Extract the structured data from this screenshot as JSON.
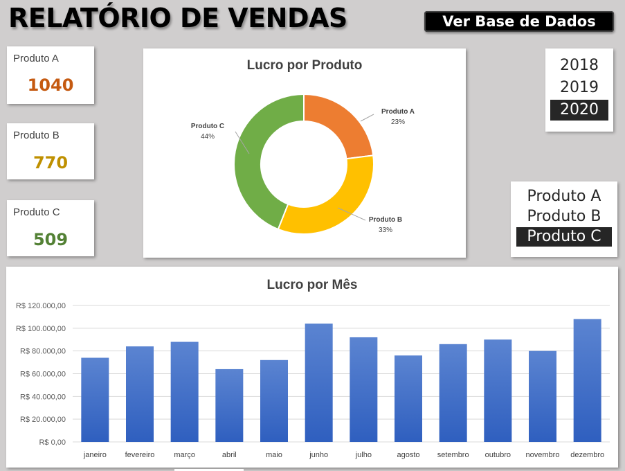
{
  "header": {
    "title": "RELATÓRIO DE VENDAS",
    "db_button": "Ver Base de Dados"
  },
  "kpis": [
    {
      "label": "Produto A",
      "value": "1040",
      "color": "#c55a11"
    },
    {
      "label": "Produto B",
      "value": "770",
      "color": "#bf9000"
    },
    {
      "label": "Produto C",
      "value": "509",
      "color": "#538135"
    }
  ],
  "year_slicer": {
    "items": [
      "2018",
      "2019",
      "2020"
    ],
    "selected": "2020"
  },
  "product_slicer": {
    "items": [
      "Produto A",
      "Produto B",
      "Produto C"
    ],
    "selected": "Produto C"
  },
  "chart_data": [
    {
      "type": "pie",
      "title": "Lucro por Produto",
      "donut": true,
      "categories": [
        "Produto A",
        "Produto B",
        "Produto C"
      ],
      "values": [
        23,
        33,
        44
      ],
      "value_labels": [
        "23%",
        "33%",
        "44%"
      ],
      "colors": [
        "#ed7d31",
        "#ffc000",
        "#70ad47"
      ]
    },
    {
      "type": "bar",
      "title": "Lucro por Mês",
      "categories": [
        "janeiro",
        "fevereiro",
        "março",
        "abril",
        "maio",
        "junho",
        "julho",
        "agosto",
        "setembro",
        "outubro",
        "novembro",
        "dezembro"
      ],
      "values": [
        74000,
        84000,
        88000,
        64000,
        72000,
        104000,
        92000,
        76000,
        86000,
        90000,
        80000,
        108000
      ],
      "ylim": [
        0,
        120000
      ],
      "yticks": [
        0,
        20000,
        40000,
        60000,
        80000,
        100000,
        120000
      ],
      "ytick_labels": [
        "R$ 0,00",
        "R$ 20.000,00",
        "R$ 40.000,00",
        "R$ 60.000,00",
        "R$ 80.000,00",
        "R$ 100.000,00",
        "R$ 120.000,00"
      ],
      "bar_color": "#4472c4",
      "grid": true
    }
  ]
}
